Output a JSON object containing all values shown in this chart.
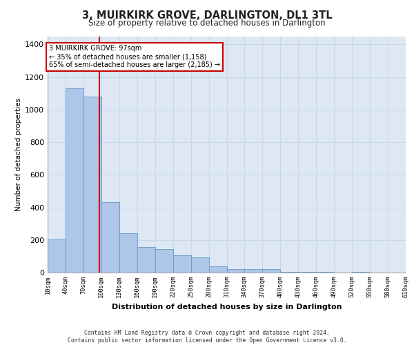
{
  "title": "3, MUIRKIRK GROVE, DARLINGTON, DL1 3TL",
  "subtitle": "Size of property relative to detached houses in Darlington",
  "xlabel": "Distribution of detached houses by size in Darlington",
  "ylabel": "Number of detached properties",
  "footer_line1": "Contains HM Land Registry data © Crown copyright and database right 2024.",
  "footer_line2": "Contains public sector information licensed under the Open Government Licence v3.0.",
  "bin_edges": [
    10,
    40,
    70,
    100,
    130,
    160,
    190,
    220,
    250,
    280,
    310,
    340,
    370,
    400,
    430,
    460,
    490,
    520,
    550,
    580,
    610
  ],
  "bar_heights": [
    205,
    1130,
    1080,
    430,
    240,
    155,
    145,
    105,
    95,
    40,
    20,
    20,
    20,
    5,
    5,
    5,
    0,
    5,
    0,
    0
  ],
  "bar_color": "#aec6e8",
  "bar_edge_color": "#6699cc",
  "grid_color": "#c8d8ea",
  "background_color": "#dde8f4",
  "annotation_text": "3 MUIRKIRK GROVE: 97sqm\n← 35% of detached houses are smaller (1,158)\n65% of semi-detached houses are larger (2,185) →",
  "red_line_x": 97,
  "annotation_box_color": "#ffffff",
  "annotation_border_color": "#cc0000",
  "ylim": [
    0,
    1450
  ],
  "yticks": [
    0,
    200,
    400,
    600,
    800,
    1000,
    1200,
    1400
  ],
  "tick_labels": [
    "10sqm",
    "40sqm",
    "70sqm",
    "100sqm",
    "130sqm",
    "160sqm",
    "190sqm",
    "220sqm",
    "250sqm",
    "280sqm",
    "310sqm",
    "340sqm",
    "370sqm",
    "400sqm",
    "430sqm",
    "460sqm",
    "490sqm",
    "520sqm",
    "550sqm",
    "580sqm",
    "610sqm"
  ]
}
